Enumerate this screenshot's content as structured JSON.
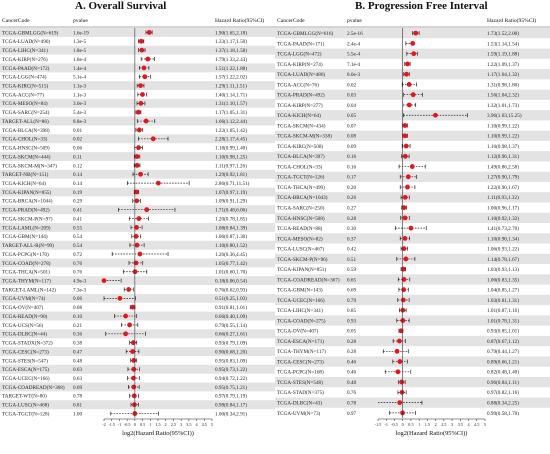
{
  "chart_data": [
    {
      "type": "forest",
      "title": "A.  Overall Survival",
      "col_headers": {
        "cancer": "CancerCode",
        "pvalue": "pvalue",
        "hr": "Hazard Ratio(95%CI)"
      },
      "xlabel": "log2(Hazard Ratio(95%CI))",
      "xticks": [
        "-2",
        "-1.5",
        "-1",
        "-0.5",
        "0",
        "0.5",
        "1",
        "1.5",
        "2",
        "2.5",
        "3",
        "3.5",
        "4",
        "4.5",
        "5"
      ],
      "xlim": [
        -2,
        5
      ],
      "rows": [
        {
          "label": "TCGA-GBMLGG(N=619)",
          "p": "1.6e-19",
          "hr_text": "1.90(1.65,2.18)",
          "lo": 0.72,
          "est": 0.93,
          "hi": 1.12
        },
        {
          "label": "TCGA-LUAD(N=490)",
          "p": "1.3e-5",
          "hr_text": "1.33(1.17,1.50)",
          "lo": 0.23,
          "est": 0.41,
          "hi": 0.58
        },
        {
          "label": "TCGA-LIHC(N=341)",
          "p": "1.8e-5",
          "hr_text": "1.37(1.18,1.58)",
          "lo": 0.24,
          "est": 0.45,
          "hi": 0.66
        },
        {
          "label": "TCGA-KIRP(N=276)",
          "p": "1.8e-4",
          "hr_text": "1.79(1.33,2.43)",
          "lo": 0.41,
          "est": 0.84,
          "hi": 1.28
        },
        {
          "label": "TCGA-PAAD(N=172)",
          "p": "1.4e-4",
          "hr_text": "1.51(1.22,1.88)",
          "lo": 0.29,
          "est": 0.59,
          "hi": 0.91
        },
        {
          "label": "TCGA-LGG(N=474)",
          "p": "5.1e-4",
          "hr_text": "1.57(1.22,2.02)",
          "lo": 0.29,
          "est": 0.65,
          "hi": 1.01
        },
        {
          "label": "TCGA-KIRC(N=515)",
          "p": "1.1e-3",
          "hr_text": "1.29(1.11,1.51)",
          "lo": 0.15,
          "est": 0.37,
          "hi": 0.59
        },
        {
          "label": "TCGA-ACC(N=77)",
          "p": "1.1e-3",
          "hr_text": "1.40(1.14,1.71)",
          "lo": 0.19,
          "est": 0.49,
          "hi": 0.77
        },
        {
          "label": "TCGA-MESO(N=84)",
          "p": "3.0e-3",
          "hr_text": "1.31(1.10,1.57)",
          "lo": 0.14,
          "est": 0.39,
          "hi": 0.65
        },
        {
          "label": "TCGA-SARC(N=254)",
          "p": "5.4e-3",
          "hr_text": "1.17(1.05,1.31)",
          "lo": 0.07,
          "est": 0.23,
          "hi": 0.39
        },
        {
          "label": "TARGET-ALL(N=86)",
          "p": "8.8e-3",
          "hr_text": "1.66(1.12,2.44)",
          "lo": 0.16,
          "est": 0.73,
          "hi": 1.29
        },
        {
          "label": "TCGA-BLCA(N=398)",
          "p": "0.01",
          "hr_text": "1.22(1.05,1.42)",
          "lo": 0.07,
          "est": 0.29,
          "hi": 0.51
        },
        {
          "label": "TCGA-CHOL(N=33)",
          "p": "0.02",
          "hr_text": "2.28(1.17,4.45)",
          "lo": 0.23,
          "est": 1.19,
          "hi": 2.15
        },
        {
          "label": "TCGA-HNSC(N=509)",
          "p": "0.06",
          "hr_text": "1.18(0.99,1.40)",
          "lo": -0.01,
          "est": 0.24,
          "hi": 0.49
        },
        {
          "label": "TCGA-SKCM(N=444)",
          "p": "0.11",
          "hr_text": "1.10(0.98,1.25)",
          "lo": -0.03,
          "est": 0.14,
          "hi": 0.32
        },
        {
          "label": "TCGA-SKCM-M(N=347)",
          "p": "0.12",
          "hr_text": "1.11(0.97,1.26)",
          "lo": -0.04,
          "est": 0.15,
          "hi": 0.33
        },
        {
          "label": "TARGET-NB(N=151)",
          "p": "0.14",
          "hr_text": "1.29(0.92,1.81)",
          "lo": -0.12,
          "est": 0.37,
          "hi": 0.86
        },
        {
          "label": "TCGA-KICH(N=64)",
          "p": "0.14",
          "hr_text": "2.86(0.71,11.51)",
          "lo": -0.49,
          "est": 1.52,
          "hi": 3.52
        },
        {
          "label": "TCGA-KIPAN(N=855)",
          "p": "0.19",
          "hr_text": "1.07(0.97,1.19)",
          "lo": -0.04,
          "est": 0.1,
          "hi": 0.25
        },
        {
          "label": "TCGA-BRCA(N=1044)",
          "p": "0.29",
          "hr_text": "1.09(0.91,1.29)",
          "lo": -0.14,
          "est": 0.12,
          "hi": 0.37
        },
        {
          "label": "TCGA-PRAD(N=492)",
          "p": "0.41",
          "hr_text": "1.71(0.48,6.06)",
          "lo": -1.06,
          "est": 0.77,
          "hi": 2.6
        },
        {
          "label": "TCGA-SKCM-P(N=97)",
          "p": "0.41",
          "hr_text": "1.20(0.78,1.85)",
          "lo": -0.36,
          "est": 0.26,
          "hi": 0.89
        },
        {
          "label": "TCGA-LAML(N=209)",
          "p": "0.55",
          "hr_text": "1.08(0.84,1.39)",
          "lo": -0.25,
          "est": 0.11,
          "hi": 0.47
        },
        {
          "label": "TCGA-GBM(N=144)",
          "p": "0.54",
          "hr_text": "1.06(0.87,1.30)",
          "lo": -0.2,
          "est": 0.08,
          "hi": 0.38
        },
        {
          "label": "TARGET-ALL-R(N=99)",
          "p": "0.54",
          "hr_text": "1.10(0.80,1.52)",
          "lo": -0.32,
          "est": 0.14,
          "hi": 0.6
        },
        {
          "label": "TCGA-PCPG(N=170)",
          "p": "0.72",
          "hr_text": "1.26(0.36,4.45)",
          "lo": -1.47,
          "est": 0.33,
          "hi": 2.15
        },
        {
          "label": "TCGA-COAD(N=278)",
          "p": "0.76",
          "hr_text": "1.05(0.77,1.42)",
          "lo": -0.38,
          "est": 0.07,
          "hi": 0.51
        },
        {
          "label": "TCGA-THCA(N=501)",
          "p": "0.76",
          "hr_text": "1.01(0.60,1.70)",
          "lo": -0.74,
          "est": 0.01,
          "hi": 0.77
        },
        {
          "label": "TCGA-THYM(N=117)",
          "p": "4.9e-3",
          "hr_text": "0.18(0.06,0.54)",
          "lo": -4.06,
          "est": -2.47,
          "hi": -0.89
        },
        {
          "label": "TARGET-LAML(N=142)",
          "p": "7.3e-3",
          "hr_text": "0.76(0.62,0.93)",
          "lo": -0.69,
          "est": -0.4,
          "hi": -0.1
        },
        {
          "label": "TCGA-UVM(N=74)",
          "p": "0.06",
          "hr_text": "0.51(0.25,1.03)",
          "lo": -2.0,
          "est": -0.97,
          "hi": 0.04
        },
        {
          "label": "TCGA-OV(N=407)",
          "p": "0.08",
          "hr_text": "0.91(0.81,1.01)",
          "lo": -0.3,
          "est": -0.14,
          "hi": 0.01
        },
        {
          "label": "TCGA-READ(N=90)",
          "p": "0.10",
          "hr_text": "0.66(0.40,1.09)",
          "lo": -1.32,
          "est": -0.6,
          "hi": 0.12
        },
        {
          "label": "TCGA-UCS(N=56)",
          "p": "0.21",
          "hr_text": "0.79(0.55,1.14)",
          "lo": -0.86,
          "est": -0.34,
          "hi": 0.19
        },
        {
          "label": "TCGA-DLBC(N=44)",
          "p": "0.36",
          "hr_text": "0.66(0.27,1.61)",
          "lo": -1.89,
          "est": -0.6,
          "hi": 0.69
        },
        {
          "label": "TCGA-STADX(N=372)",
          "p": "0.38",
          "hr_text": "0.93(0.79,1.09)",
          "lo": -0.34,
          "est": -0.1,
          "hi": 0.12
        },
        {
          "label": "TCGA-CESC(N=273)",
          "p": "0.47",
          "hr_text": "0.90(0.68,1.20)",
          "lo": -0.56,
          "est": -0.15,
          "hi": 0.26
        },
        {
          "label": "TCGA-STES(N=547)",
          "p": "0.48",
          "hr_text": "0.95(0.83,1.09)",
          "lo": -0.27,
          "est": -0.07,
          "hi": 0.12
        },
        {
          "label": "TCGA-ESCA(N=175)",
          "p": "0.63",
          "hr_text": "0.95(0.73,1.22)",
          "lo": -0.45,
          "est": -0.07,
          "hi": 0.29
        },
        {
          "label": "TCGA-UCEC(N=166)",
          "p": "0.63",
          "hr_text": "0.94(0.72,1.22)",
          "lo": -0.47,
          "est": -0.09,
          "hi": 0.29
        },
        {
          "label": "TCGA-COADREAD(N=368)",
          "p": "0.69",
          "hr_text": "0.95(0.75,1.21)",
          "lo": -0.42,
          "est": -0.07,
          "hi": 0.28
        },
        {
          "label": "TARGET-WT(N=80)",
          "p": "0.78",
          "hr_text": "0.97(0.79,1.19)",
          "lo": -0.34,
          "est": -0.04,
          "hi": 0.25
        },
        {
          "label": "TCGA-LUSC(N=468)",
          "p": "0.81",
          "hr_text": "0.98(0.84,1.17)",
          "lo": -0.25,
          "est": -0.03,
          "hi": 0.23
        },
        {
          "label": "TCGA-TGCT(N=128)",
          "p": "1.00",
          "hr_text": "1.00(0.34,2.91)",
          "lo": -1.56,
          "est": 0.0,
          "hi": 1.54
        }
      ]
    },
    {
      "type": "forest",
      "title": "B.  Progression Free Interval",
      "col_headers": {
        "cancer": "CancerCode",
        "pvalue": "pvalue",
        "hr": "Hazard Ratio(95%CI)"
      },
      "xlabel": "log2(Hazard Ratio(95%CI))",
      "xticks": [
        "-1.5",
        "-1",
        "-0.5",
        "0",
        "0.5",
        "1",
        "1.5",
        "2",
        "2.5",
        "3",
        "3.5",
        "4",
        "4.5",
        "5"
      ],
      "xlim": [
        -1.5,
        5
      ],
      "rows": [
        {
          "label": "TCGA-GBMLGG(N=616)",
          "p": "2.5e-16",
          "hr_text": "1.73(1.52,2.00)",
          "lo": 0.6,
          "est": 0.79,
          "hi": 1.0
        },
        {
          "label": "TCGA-PAAD(N=171)",
          "p": "2.4e-4",
          "hr_text": "1.53(1.14,1.54)",
          "lo": 0.19,
          "est": 0.61,
          "hi": 0.62
        },
        {
          "label": "TCGA-LGG(N=472)",
          "p": "5.5e-4",
          "hr_text": "1.59(1.19,1.88)",
          "lo": 0.25,
          "est": 0.67,
          "hi": 0.91
        },
        {
          "label": "TCGA-KIRP(N=274)",
          "p": "7.1e-4",
          "hr_text": "1.22(1.09,1.37)",
          "lo": 0.12,
          "est": 0.29,
          "hi": 0.45
        },
        {
          "label": "TCGA-LUAD(N=486)",
          "p": "8.0e-3",
          "hr_text": "1.17(1.04,1.32)",
          "lo": 0.06,
          "est": 0.23,
          "hi": 0.4
        },
        {
          "label": "TCGA-ACC(N=76)",
          "p": "0.02",
          "hr_text": "1.31(0.98,1.80)",
          "lo": -0.03,
          "est": 0.39,
          "hi": 0.85
        },
        {
          "label": "TCGA-PRAD(N=492)",
          "p": "0.03",
          "hr_text": "1.56(1.04,2.32)",
          "lo": 0.06,
          "est": 0.64,
          "hi": 1.21
        },
        {
          "label": "TCGA-KIRP(N=277)",
          "p": "0.04",
          "hr_text": "1.32(1.01,1.73)",
          "lo": 0.01,
          "est": 0.4,
          "hi": 0.79
        },
        {
          "label": "TCGA-KICH(N=64)",
          "p": "0.05",
          "hr_text": "3.96(1.03,15.25)",
          "lo": 0.04,
          "est": 1.99,
          "hi": 3.93
        },
        {
          "label": "TCGA-SKCM(N=434)",
          "p": "0.07",
          "hr_text": "1.10(0.99,1.22)",
          "lo": -0.01,
          "est": 0.14,
          "hi": 0.29
        },
        {
          "label": "TCGA-SKCM-M(N=338)",
          "p": "0.08",
          "hr_text": "1.10(0.99,1.22)",
          "lo": -0.01,
          "est": 0.14,
          "hi": 0.29
        },
        {
          "label": "TCGA-KIRC(N=508)",
          "p": "0.09",
          "hr_text": "1.16(0.98,1.37)",
          "lo": -0.03,
          "est": 0.21,
          "hi": 0.45
        },
        {
          "label": "TCGA-BLCA(N=397)",
          "p": "0.16",
          "hr_text": "1.12(0.96,1.31)",
          "lo": -0.06,
          "est": 0.16,
          "hi": 0.39
        },
        {
          "label": "TCGA-CHOL(N=33)",
          "p": "0.16",
          "hr_text": "1.49(0.86,2.58)",
          "lo": -0.22,
          "est": 0.58,
          "hi": 1.37
        },
        {
          "label": "TCGA-TGCT(N=126)",
          "p": "0.17",
          "hr_text": "1.27(0.90,1.79)",
          "lo": -0.15,
          "est": 0.34,
          "hi": 0.84
        },
        {
          "label": "TCGA-THCA(N=499)",
          "p": "0.20",
          "hr_text": "1.22(0.90,1.67)",
          "lo": -0.15,
          "est": 0.29,
          "hi": 0.74
        },
        {
          "label": "TCGA-BRCA(N=1043)",
          "p": "0.26",
          "hr_text": "1.11(0.93,1.32)",
          "lo": -0.1,
          "est": 0.15,
          "hi": 0.4
        },
        {
          "label": "TCGA-SARC(N=250)",
          "p": "0.27",
          "hr_text": "1.06(0.96,1.17)",
          "lo": -0.06,
          "est": 0.08,
          "hi": 0.23
        },
        {
          "label": "TCGA-HNSC(N=508)",
          "p": "0.28",
          "hr_text": "1.10(0.92,1.32)",
          "lo": -0.12,
          "est": 0.14,
          "hi": 0.4
        },
        {
          "label": "TCGA-READ(N=88)",
          "p": "0.30",
          "hr_text": "1.41(0.73,2.70)",
          "lo": -0.45,
          "est": 0.5,
          "hi": 1.43
        },
        {
          "label": "TCGA-MESO(N=82)",
          "p": "0.37",
          "hr_text": "1.10(0.90,1.34)",
          "lo": -0.15,
          "est": 0.14,
          "hi": 0.42
        },
        {
          "label": "TCGA-LUSC(N=467)",
          "p": "0.42",
          "hr_text": "1.06(0.93,1.22)",
          "lo": -0.1,
          "est": 0.08,
          "hi": 0.29
        },
        {
          "label": "TCGA-SKCM-P(N=96)",
          "p": "0.51",
          "hr_text": "1.14(0.78,1.67)",
          "lo": -0.36,
          "est": 0.19,
          "hi": 0.74
        },
        {
          "label": "TCGA-KIPAN(N=851)",
          "p": "0.59",
          "hr_text": "1.03(0.93,1.13)",
          "lo": -0.1,
          "est": 0.04,
          "hi": 0.18
        },
        {
          "label": "TCGA-COADREAD(N=367)",
          "p": "0.65",
          "hr_text": "1.06(0.83,1.35)",
          "lo": -0.27,
          "est": 0.08,
          "hi": 0.43
        },
        {
          "label": "TCGA-GBM(N=143)",
          "p": "0.69",
          "hr_text": "1.04(0.85,1.27)",
          "lo": -0.23,
          "est": 0.06,
          "hi": 0.34
        },
        {
          "label": "TCGA-UCEC(N=166)",
          "p": "0.79",
          "hr_text": "1.03(0.81,1.31)",
          "lo": -0.3,
          "est": 0.04,
          "hi": 0.39
        },
        {
          "label": "TCGA-LIHC(N=341)",
          "p": "0.85",
          "hr_text": "1.01(0.87,1.16)",
          "lo": -0.2,
          "est": 0.01,
          "hi": 0.21
        },
        {
          "label": "TCGA-COAD(N=275)",
          "p": "0.93",
          "hr_text": "1.01(0.78,1.31)",
          "lo": -0.36,
          "est": 0.01,
          "hi": 0.39
        },
        {
          "label": "TCGA-OV(N=407)",
          "p": "0.05",
          "hr_text": "0.93(0.85,1.01)",
          "lo": -0.23,
          "est": -0.1,
          "hi": 0.01
        },
        {
          "label": "TCGA-ESCA(N=171)",
          "p": "0.28",
          "hr_text": "0.87(0.67,1.12)",
          "lo": -0.58,
          "est": -0.2,
          "hi": 0.16
        },
        {
          "label": "TCGA-THYM(N=117)",
          "p": "0.28",
          "hr_text": "0.79(0.44,1.27)",
          "lo": -1.18,
          "est": -0.34,
          "hi": 0.34
        },
        {
          "label": "TCGA-CESC(N=273)",
          "p": "0.46",
          "hr_text": "0.89(0.66,1.21)",
          "lo": -0.6,
          "est": -0.17,
          "hi": 0.28
        },
        {
          "label": "TCGA-PCPG(N=168)",
          "p": "0.46",
          "hr_text": "0.82(0.48,1.40)",
          "lo": -1.06,
          "est": -0.29,
          "hi": 0.49
        },
        {
          "label": "TCGA-STES(N=548)",
          "p": "0.48",
          "hr_text": "0.96(0.84,1.11)",
          "lo": -0.25,
          "est": -0.06,
          "hi": 0.15
        },
        {
          "label": "TCGA-STAD(N=375)",
          "p": "0.76",
          "hr_text": "0.97(0.82,1.16)",
          "lo": -0.29,
          "est": -0.04,
          "hi": 0.21
        },
        {
          "label": "TCGA-DLBC(N=43)",
          "p": "0.78",
          "hr_text": "0.88(0.34,2.25)",
          "lo": -1.56,
          "est": -0.18,
          "hi": 1.17
        },
        {
          "label": "TCGA-UVM(N=73)",
          "p": "0.97",
          "hr_text": "0.99(0.58,1.70)",
          "lo": -0.79,
          "est": -0.01,
          "hi": 0.77
        }
      ]
    }
  ]
}
